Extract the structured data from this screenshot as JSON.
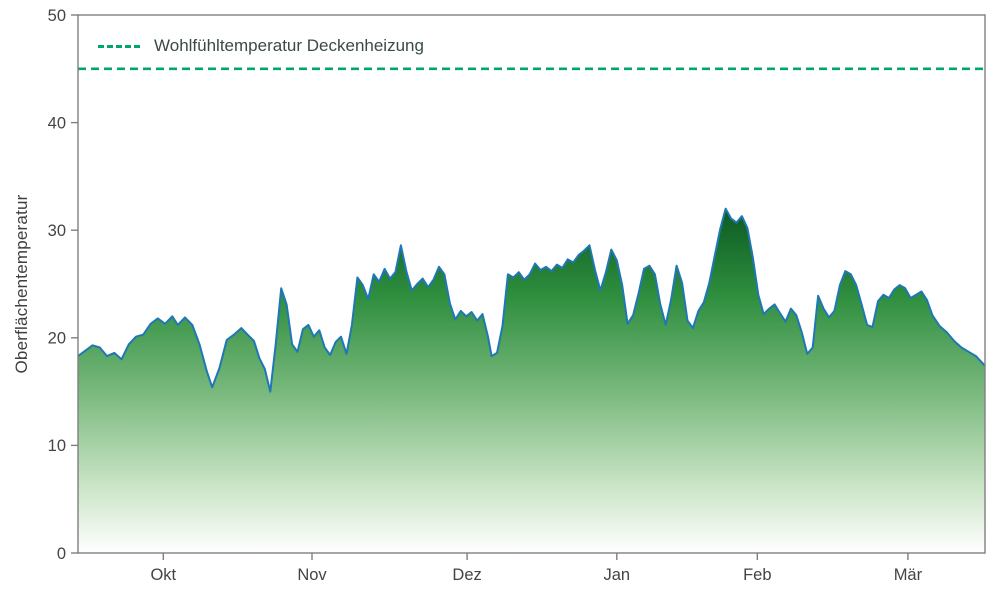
{
  "chart_data": {
    "type": "area",
    "title": "",
    "xlabel": "",
    "ylabel": "Oberflächentemperatur",
    "ylim": [
      0,
      50
    ],
    "grid": false,
    "legend_position": "upper left",
    "y_ticks": [
      0,
      10,
      20,
      30,
      40,
      50
    ],
    "x_ticks": [
      {
        "label": "Okt",
        "pos": 0.094
      },
      {
        "label": "Nov",
        "pos": 0.258
      },
      {
        "label": "Dez",
        "pos": 0.429
      },
      {
        "label": "Jan",
        "pos": 0.594
      },
      {
        "label": "Feb",
        "pos": 0.749
      },
      {
        "label": "Mär",
        "pos": 0.915
      }
    ],
    "threshold": {
      "label": "Wohlfühltemperatur Deckenheizung",
      "value": 45
    },
    "colors": {
      "line": "#1f77b4",
      "threshold": "#00a572",
      "axis": "#7f7f7f",
      "tick_text": "#444444",
      "label_text": "#3f3f3f",
      "legend_text": "#3a4b44",
      "fill_gradient": [
        {
          "offset": 0.0,
          "color": "#07541d"
        },
        {
          "offset": 0.28,
          "color": "#2f8f3f"
        },
        {
          "offset": 0.55,
          "color": "#7ab97e"
        },
        {
          "offset": 0.82,
          "color": "#cde6c9"
        },
        {
          "offset": 1.0,
          "color": "#ffffff"
        }
      ],
      "gradient_top_value": 33
    },
    "series": [
      {
        "name": "Oberflächentemperatur",
        "points": [
          [
            0.0,
            18.3
          ],
          [
            0.008,
            18.8
          ],
          [
            0.016,
            19.3
          ],
          [
            0.024,
            19.1
          ],
          [
            0.032,
            18.3
          ],
          [
            0.04,
            18.6
          ],
          [
            0.048,
            18.0
          ],
          [
            0.056,
            19.4
          ],
          [
            0.064,
            20.1
          ],
          [
            0.072,
            20.3
          ],
          [
            0.08,
            21.3
          ],
          [
            0.088,
            21.8
          ],
          [
            0.096,
            21.3
          ],
          [
            0.104,
            22.0
          ],
          [
            0.11,
            21.2
          ],
          [
            0.118,
            21.9
          ],
          [
            0.126,
            21.2
          ],
          [
            0.134,
            19.4
          ],
          [
            0.142,
            16.9
          ],
          [
            0.148,
            15.4
          ],
          [
            0.156,
            17.2
          ],
          [
            0.164,
            19.8
          ],
          [
            0.172,
            20.3
          ],
          [
            0.18,
            20.9
          ],
          [
            0.188,
            20.2
          ],
          [
            0.194,
            19.7
          ],
          [
            0.2,
            18.1
          ],
          [
            0.206,
            17.1
          ],
          [
            0.212,
            15.0
          ],
          [
            0.218,
            19.4
          ],
          [
            0.224,
            24.6
          ],
          [
            0.23,
            23.1
          ],
          [
            0.236,
            19.4
          ],
          [
            0.242,
            18.7
          ],
          [
            0.248,
            20.8
          ],
          [
            0.254,
            21.2
          ],
          [
            0.26,
            20.1
          ],
          [
            0.266,
            20.7
          ],
          [
            0.272,
            19.1
          ],
          [
            0.278,
            18.4
          ],
          [
            0.284,
            19.6
          ],
          [
            0.29,
            20.1
          ],
          [
            0.296,
            18.5
          ],
          [
            0.302,
            21.2
          ],
          [
            0.308,
            25.6
          ],
          [
            0.314,
            24.9
          ],
          [
            0.32,
            23.6
          ],
          [
            0.326,
            25.9
          ],
          [
            0.332,
            25.2
          ],
          [
            0.338,
            26.4
          ],
          [
            0.344,
            25.5
          ],
          [
            0.35,
            26.1
          ],
          [
            0.356,
            28.6
          ],
          [
            0.362,
            26.2
          ],
          [
            0.368,
            24.4
          ],
          [
            0.374,
            25.0
          ],
          [
            0.38,
            25.5
          ],
          [
            0.386,
            24.7
          ],
          [
            0.392,
            25.4
          ],
          [
            0.398,
            26.6
          ],
          [
            0.404,
            25.9
          ],
          [
            0.41,
            23.2
          ],
          [
            0.416,
            21.7
          ],
          [
            0.422,
            22.5
          ],
          [
            0.428,
            22.0
          ],
          [
            0.434,
            22.4
          ],
          [
            0.44,
            21.6
          ],
          [
            0.446,
            22.2
          ],
          [
            0.452,
            20.1
          ],
          [
            0.456,
            18.3
          ],
          [
            0.462,
            18.6
          ],
          [
            0.468,
            21.1
          ],
          [
            0.474,
            25.9
          ],
          [
            0.48,
            25.6
          ],
          [
            0.486,
            26.1
          ],
          [
            0.492,
            25.4
          ],
          [
            0.498,
            25.9
          ],
          [
            0.504,
            26.9
          ],
          [
            0.51,
            26.3
          ],
          [
            0.516,
            26.6
          ],
          [
            0.522,
            26.2
          ],
          [
            0.528,
            26.8
          ],
          [
            0.534,
            26.5
          ],
          [
            0.54,
            27.3
          ],
          [
            0.546,
            27.0
          ],
          [
            0.552,
            27.7
          ],
          [
            0.558,
            28.1
          ],
          [
            0.564,
            28.6
          ],
          [
            0.57,
            26.3
          ],
          [
            0.576,
            24.4
          ],
          [
            0.582,
            26.1
          ],
          [
            0.588,
            28.2
          ],
          [
            0.594,
            27.2
          ],
          [
            0.6,
            24.9
          ],
          [
            0.606,
            21.3
          ],
          [
            0.612,
            22.1
          ],
          [
            0.618,
            24.1
          ],
          [
            0.624,
            26.4
          ],
          [
            0.63,
            26.7
          ],
          [
            0.636,
            25.9
          ],
          [
            0.642,
            23.1
          ],
          [
            0.648,
            21.2
          ],
          [
            0.654,
            23.6
          ],
          [
            0.66,
            26.7
          ],
          [
            0.666,
            25.1
          ],
          [
            0.672,
            21.6
          ],
          [
            0.678,
            20.9
          ],
          [
            0.684,
            22.5
          ],
          [
            0.69,
            23.3
          ],
          [
            0.696,
            25.1
          ],
          [
            0.702,
            27.6
          ],
          [
            0.708,
            30.1
          ],
          [
            0.714,
            32.0
          ],
          [
            0.72,
            31.1
          ],
          [
            0.726,
            30.7
          ],
          [
            0.732,
            31.3
          ],
          [
            0.738,
            30.2
          ],
          [
            0.744,
            27.5
          ],
          [
            0.75,
            24.0
          ],
          [
            0.756,
            22.2
          ],
          [
            0.762,
            22.7
          ],
          [
            0.768,
            23.1
          ],
          [
            0.774,
            22.3
          ],
          [
            0.78,
            21.5
          ],
          [
            0.786,
            22.7
          ],
          [
            0.792,
            22.1
          ],
          [
            0.798,
            20.5
          ],
          [
            0.804,
            18.5
          ],
          [
            0.81,
            19.1
          ],
          [
            0.816,
            23.9
          ],
          [
            0.822,
            22.7
          ],
          [
            0.828,
            21.9
          ],
          [
            0.834,
            22.5
          ],
          [
            0.84,
            24.9
          ],
          [
            0.846,
            26.2
          ],
          [
            0.852,
            25.9
          ],
          [
            0.858,
            24.9
          ],
          [
            0.864,
            23.1
          ],
          [
            0.87,
            21.2
          ],
          [
            0.876,
            21.0
          ],
          [
            0.882,
            23.4
          ],
          [
            0.888,
            24.0
          ],
          [
            0.894,
            23.7
          ],
          [
            0.9,
            24.5
          ],
          [
            0.906,
            24.9
          ],
          [
            0.912,
            24.6
          ],
          [
            0.918,
            23.7
          ],
          [
            0.924,
            24.0
          ],
          [
            0.93,
            24.3
          ],
          [
            0.936,
            23.5
          ],
          [
            0.942,
            22.1
          ],
          [
            0.95,
            21.1
          ],
          [
            0.958,
            20.5
          ],
          [
            0.966,
            19.7
          ],
          [
            0.974,
            19.1
          ],
          [
            0.982,
            18.7
          ],
          [
            0.99,
            18.3
          ],
          [
            1.0,
            17.4
          ]
        ]
      }
    ]
  }
}
